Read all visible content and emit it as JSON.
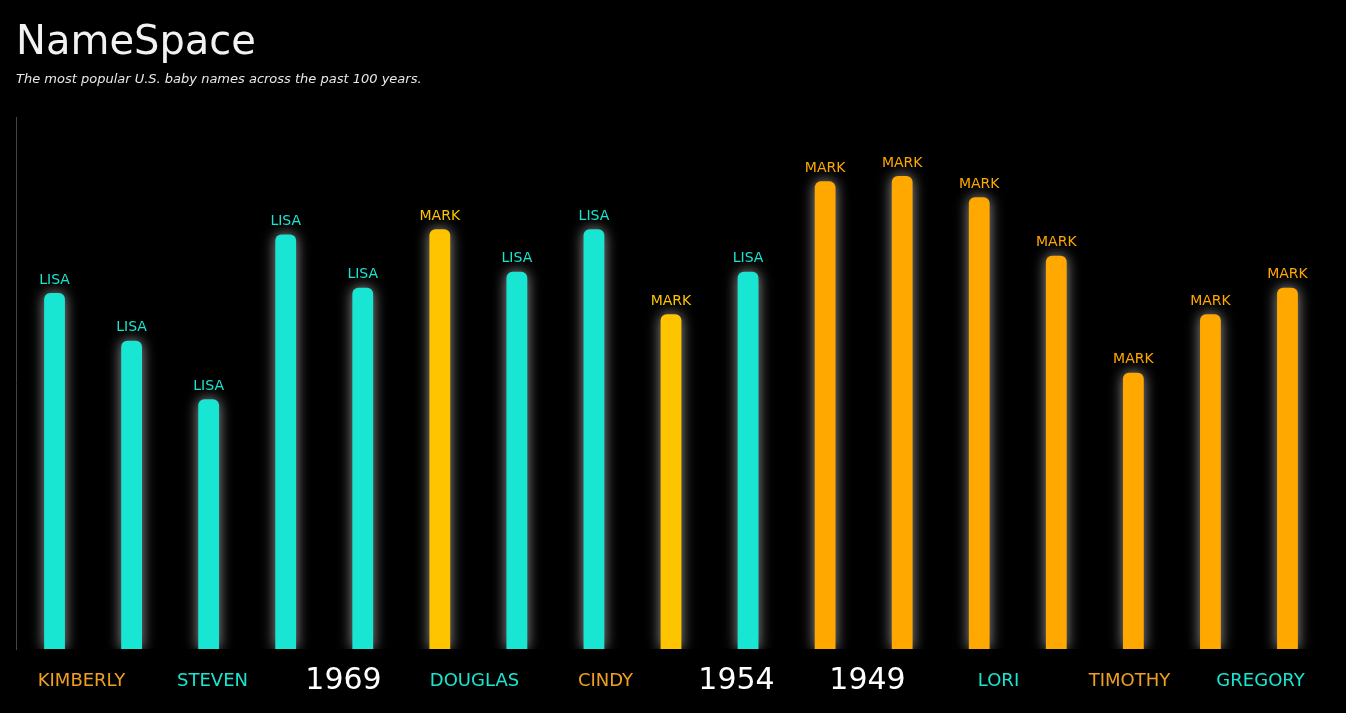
{
  "chart_data": {
    "type": "bar",
    "title": "NameSpace",
    "subtitle": "The most popular U.S. baby names across the past 100 years.",
    "categories": [
      "LISA",
      "LISA",
      "LISA",
      "LISA",
      "LISA",
      "MARK",
      "LISA",
      "LISA",
      "MARK",
      "LISA",
      "MARK",
      "MARK",
      "MARK",
      "MARK",
      "MARK",
      "MARK",
      "MARK"
    ],
    "values": [
      67,
      58,
      47,
      78,
      68,
      79,
      71,
      79,
      63,
      71,
      88,
      89,
      85,
      74,
      52,
      63,
      68
    ],
    "colors": [
      "#19e6d2",
      "#19e6d2",
      "#19e6d2",
      "#19e6d2",
      "#19e6d2",
      "#ffc400",
      "#19e6d2",
      "#19e6d2",
      "#ffc400",
      "#19e6d2",
      "#ffa800",
      "#ffa800",
      "#ffa800",
      "#ffa800",
      "#ffa800",
      "#ffa800",
      "#ffa800"
    ],
    "ylim": [
      0,
      100
    ],
    "tick_labels": false,
    "grid": false,
    "annotations": [
      "KIMBERLY",
      "STEVEN",
      "1969",
      "DOUGLAS",
      "CINDY",
      "1954",
      "1949",
      "LORI",
      "TIMOTHY",
      "GREGORY"
    ]
  }
}
